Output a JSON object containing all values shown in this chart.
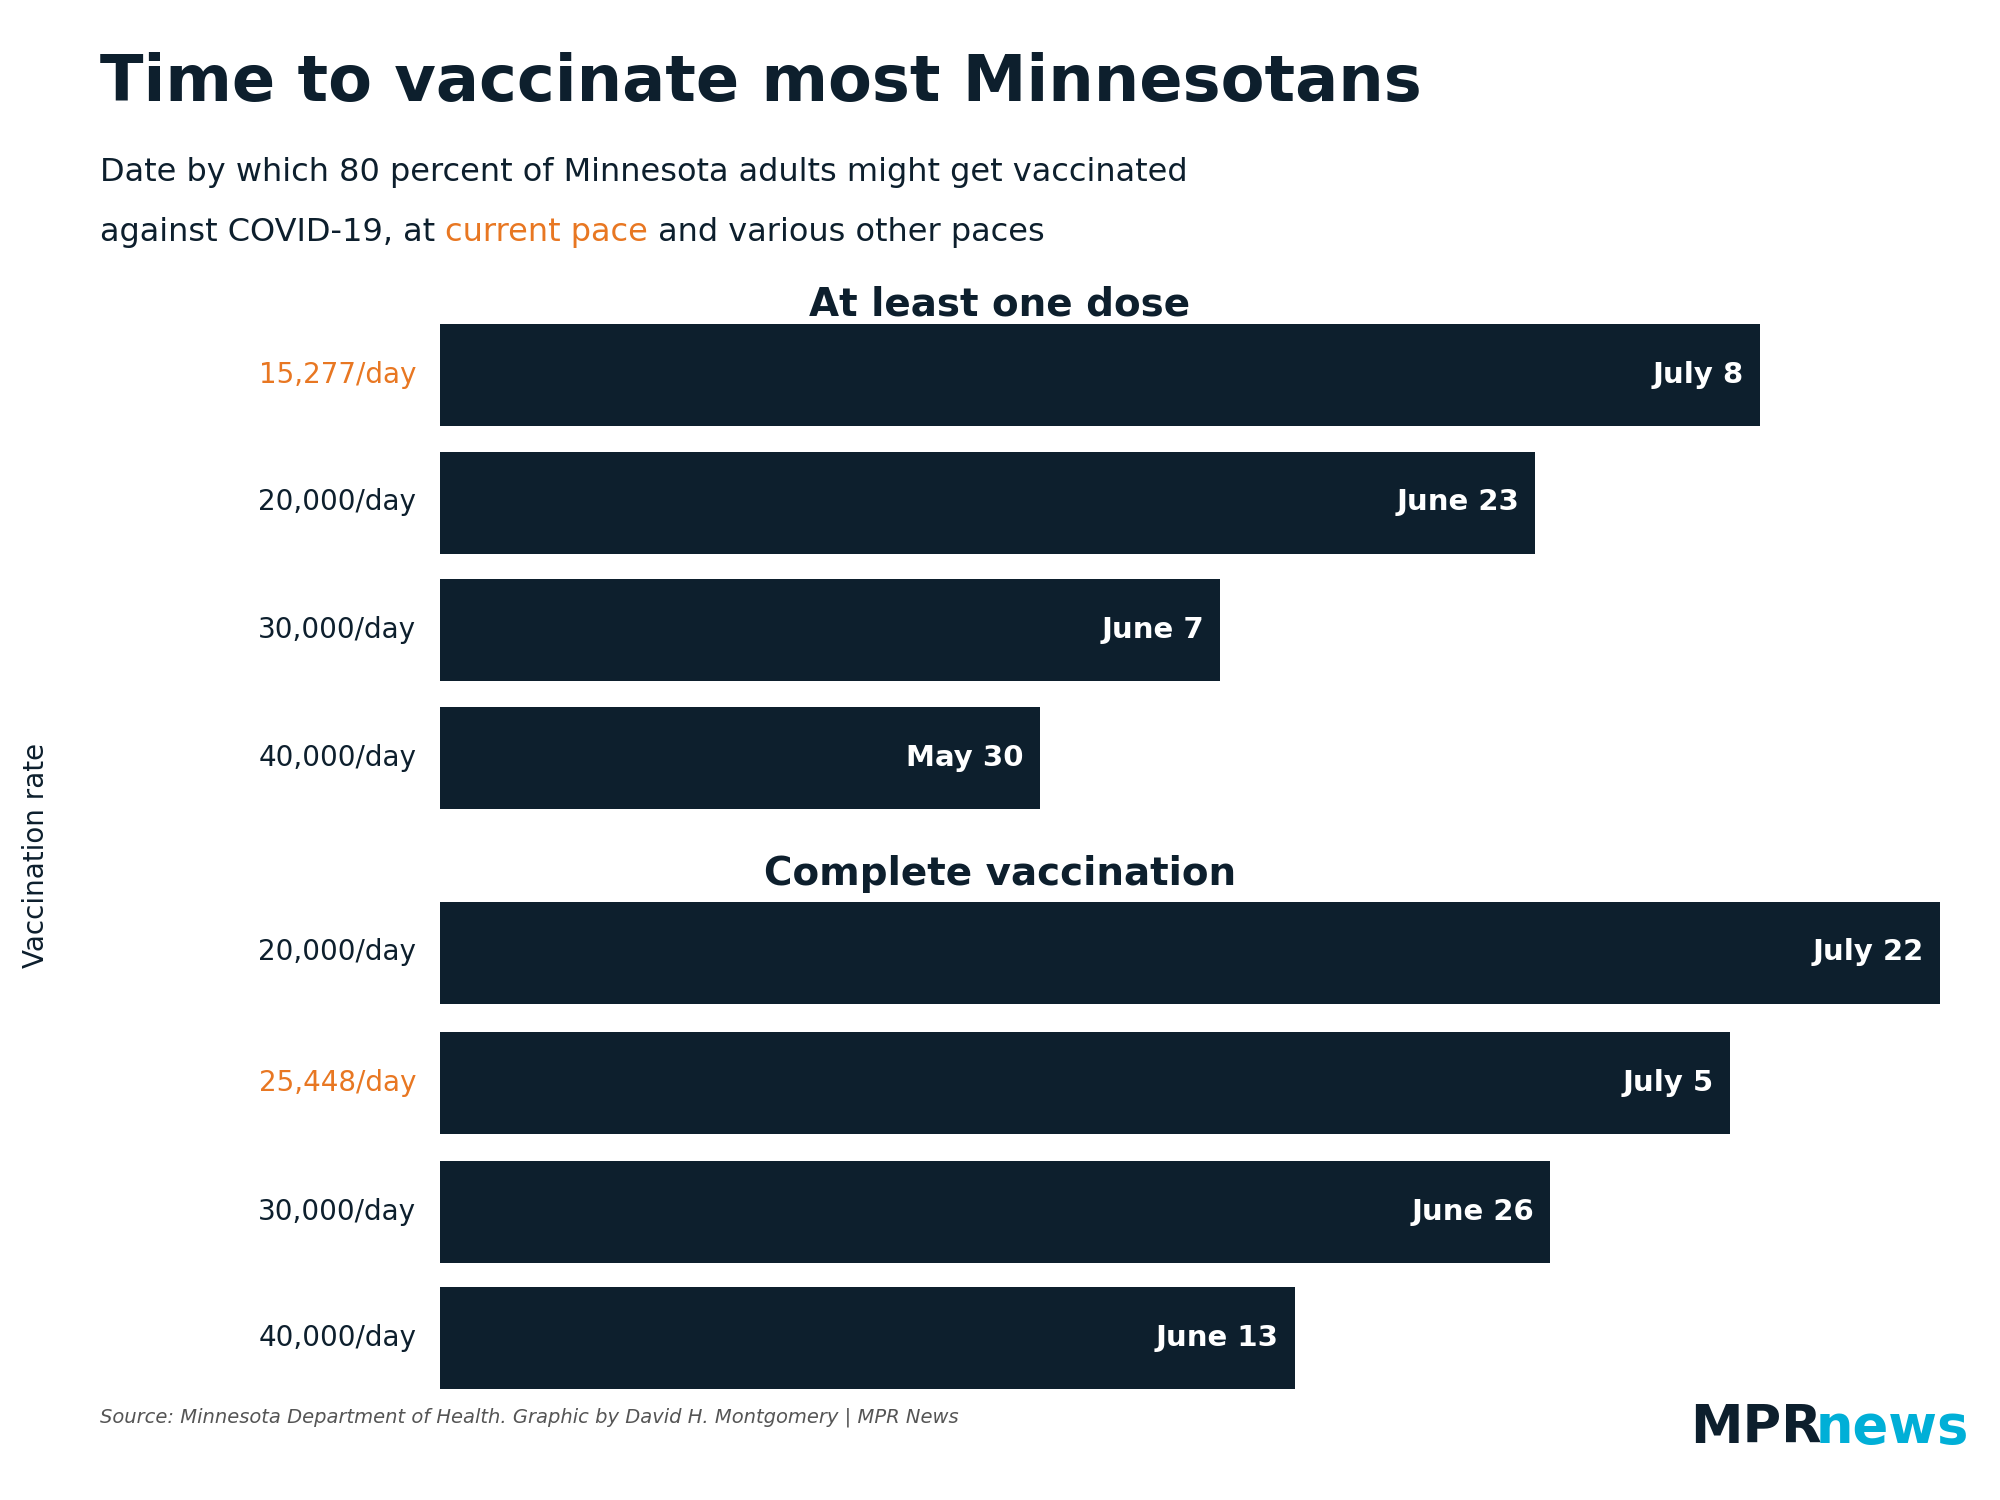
{
  "title": "Time to vaccinate most Minnesotans",
  "line1": "Date by which 80 percent of Minnesota adults might get vaccinated",
  "line2_pre": "against COVID-19, at ",
  "line2_orange": "current pace",
  "line2_post": " and various other paces",
  "section1_title": "At least one dose",
  "section2_title": "Complete vaccination",
  "bar_color": "#0d1f2d",
  "background_color": "#ffffff",
  "ylabel": "Vaccination rate",
  "source_text": "Source: Minnesota Department of Health. Graphic by David H. Montgomery | MPR News",
  "mpr_text_mpr": "MPR",
  "mpr_text_news": "news",
  "mpr_color_mpr": "#0d1f2d",
  "mpr_color_news": "#00afd7",
  "orange_color": "#e87722",
  "dark_color": "#0d1f2d",
  "dose1_bars": [
    {
      "label": "15,277/day",
      "label_color": "#e87722",
      "value": 88,
      "date_label": "July 8"
    },
    {
      "label": "20,000/day",
      "label_color": "#0d1f2d",
      "value": 73,
      "date_label": "June 23"
    },
    {
      "label": "30,000/day",
      "label_color": "#0d1f2d",
      "value": 52,
      "date_label": "June 7"
    },
    {
      "label": "40,000/day",
      "label_color": "#0d1f2d",
      "value": 40,
      "date_label": "May 30"
    }
  ],
  "dose2_bars": [
    {
      "label": "20,000/day",
      "label_color": "#0d1f2d",
      "value": 100,
      "date_label": "July 22"
    },
    {
      "label": "25,448/day",
      "label_color": "#e87722",
      "value": 86,
      "date_label": "July 5"
    },
    {
      "label": "30,000/day",
      "label_color": "#0d1f2d",
      "value": 74,
      "date_label": "June 26"
    },
    {
      "label": "40,000/day",
      "label_color": "#0d1f2d",
      "value": 57,
      "date_label": "June 13"
    }
  ]
}
